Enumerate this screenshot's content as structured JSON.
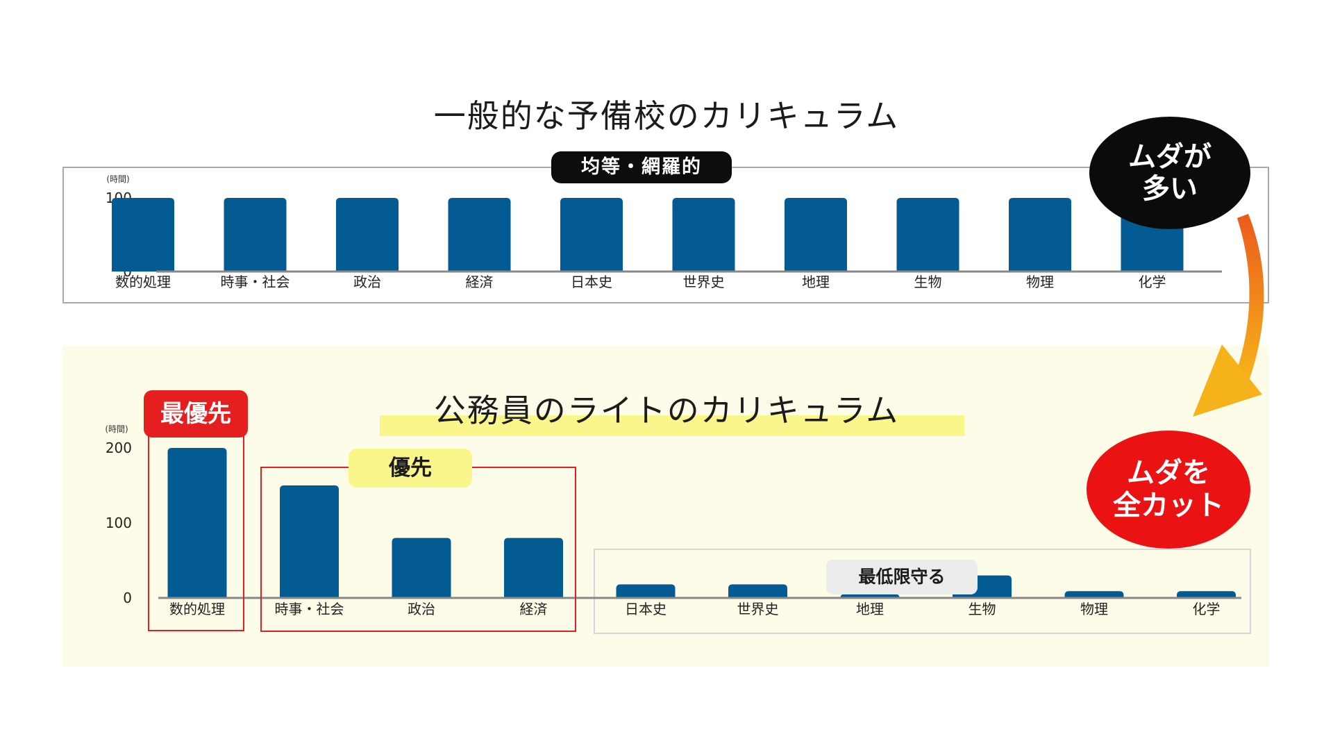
{
  "top": {
    "title": "一般的な予備校のカリキュラム",
    "pill_label": "均等・網羅的"
  },
  "bottom": {
    "title": "公務員のライトのカリキュラム",
    "badge_most": "最優先",
    "badge_priority": "優先",
    "badge_minimum": "最低限守る"
  },
  "bubbles": {
    "waste_line1": "ムダが",
    "waste_line2": "多い",
    "cut_line1": "ムダを",
    "cut_line2": "全カット"
  },
  "colors": {
    "bar": "#045a93",
    "highlight_red": "#e51f1f",
    "highlight_yellow": "#fbf68c",
    "panel_bg": "#fdfce9",
    "arrow_start": "#ea5a1c",
    "arrow_end": "#f6b21a"
  },
  "chart_data": [
    {
      "type": "bar",
      "unit_label": "(時間)",
      "categories": [
        "数的処理",
        "時事・社会",
        "政治",
        "経済",
        "日本史",
        "世界史",
        "地理",
        "生物",
        "物理",
        "化学"
      ],
      "values": [
        100,
        100,
        100,
        100,
        100,
        100,
        100,
        100,
        100,
        100
      ],
      "yticks": [
        0,
        100
      ],
      "ylim": [
        0,
        100
      ]
    },
    {
      "type": "bar",
      "unit_label": "(時間)",
      "categories": [
        "数的処理",
        "時事・社会",
        "政治",
        "経済",
        "日本史",
        "世界史",
        "地理",
        "生物",
        "物理",
        "化学"
      ],
      "values": [
        200,
        150,
        80,
        80,
        18,
        18,
        5,
        30,
        9,
        9
      ],
      "yticks": [
        0,
        100,
        200
      ],
      "ylim": [
        0,
        200
      ]
    }
  ]
}
